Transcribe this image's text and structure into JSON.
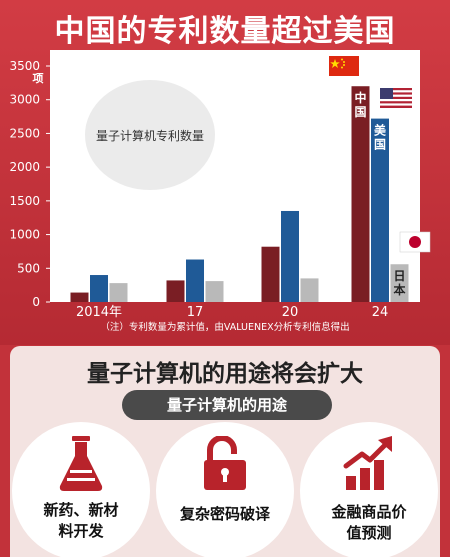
{
  "title": "中国的专利数量超过美国",
  "footnote": "（注）专利数量为累计值，由VALUENEX分析专利信息得出",
  "chart_data": {
    "type": "bar",
    "title": "中国的专利数量超过美国",
    "categories": [
      "2014年",
      "17",
      "20",
      "24"
    ],
    "series": [
      {
        "name": "中国",
        "color": "#7a1e24",
        "values": [
          140,
          320,
          820,
          3200
        ]
      },
      {
        "name": "美国",
        "color": "#1f5a97",
        "values": [
          400,
          630,
          1350,
          2720
        ]
      },
      {
        "name": "日本",
        "color": "#b9b9b9",
        "values": [
          280,
          310,
          350,
          560
        ]
      }
    ],
    "series_labels": [
      "中国",
      "美国",
      "日本"
    ],
    "ylabel": "项",
    "y_tick_labels": [
      "0",
      "500",
      "1000",
      "1500",
      "2000",
      "2500",
      "3000",
      "3500"
    ],
    "ylim": [
      0,
      3500
    ],
    "grid": false,
    "annotation": "量子计算机专利数量",
    "flags": [
      "china-flag",
      "usa-flag",
      "japan-flag"
    ]
  },
  "section2": {
    "title": "量子计算机的用途将会扩大",
    "subtitle": "量子计算机的用途",
    "uses": [
      {
        "line1": "新药、新材",
        "line2": "料开发",
        "icon": "flask-icon"
      },
      {
        "line1": "复杂密码破译",
        "line2": "",
        "icon": "unlocked-padlock-icon"
      },
      {
        "line1": "金融商品价",
        "line2": "值预测",
        "icon": "rising-bar-chart-icon"
      }
    ]
  },
  "colors": {
    "background": "#c2323a",
    "china": "#7a1e24",
    "usa": "#1f5a97",
    "japan": "#b9b9b9",
    "panel": "#f3e3e1",
    "icon": "#b8232b"
  }
}
